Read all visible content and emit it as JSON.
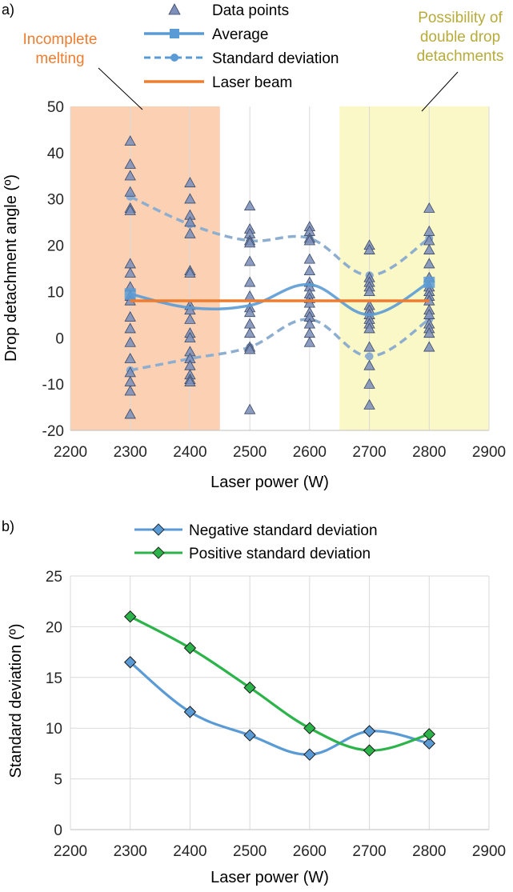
{
  "colors": {
    "incomplete_region": "#fbd0b3",
    "double_region": "#fbf8c7",
    "data_point_fill": "#7d8fba",
    "data_point_stroke": "#3b4864",
    "average": "#5b9bd5",
    "std_dev": "#8eaed0",
    "laser_beam": "#ed7d31",
    "negative_sd": "#5b9bd5",
    "positive_sd": "#2cb34a",
    "incomplete_text": "#ed7d31",
    "double_text": "#b7ab3c",
    "grid": "#d9d9d9"
  },
  "chart_data": [
    {
      "type": "scatter",
      "panel_label": "a)",
      "xlabel": "Laser power (W)",
      "ylabel": "Drop detachment angle (º)",
      "xlim": [
        2200,
        2900
      ],
      "ylim": [
        -20,
        50
      ],
      "x_ticks": [
        "2200",
        "2300",
        "2400",
        "2500",
        "2600",
        "2700",
        "2800",
        "2900"
      ],
      "y_ticks": [
        "-20",
        "-10",
        "0",
        "10",
        "20",
        "30",
        "40",
        "50"
      ],
      "grid": "vertical",
      "legend_position": "top",
      "regions": [
        {
          "x_from": 2200,
          "x_to": 2450,
          "label_lines": [
            "Incomplete",
            "melting"
          ],
          "pointer": [
            2290,
            10
          ]
        },
        {
          "x_from": 2650,
          "x_to": 2900,
          "label_lines": [
            "Possibility of",
            "double drop",
            "detachments"
          ],
          "pointer": [
            2780,
            13
          ]
        }
      ],
      "series": [
        {
          "name": "Data points",
          "kind": "markers",
          "points": {
            "2300": [
              42.5,
              37.5,
              35,
              31.5,
              28,
              27.5,
              16,
              14,
              11,
              9,
              8,
              4.5,
              2,
              -1,
              -4.5,
              -7.5,
              -9.5,
              -11.5,
              -16.5
            ],
            "2400": [
              33.5,
              30,
              26.5,
              25,
              22.5,
              14.5,
              14,
              7,
              6,
              4,
              1,
              0,
              -3,
              -4.5,
              -6,
              -8,
              -9,
              -9.5
            ],
            "2500": [
              28.5,
              23.5,
              22.5,
              21,
              20.5,
              16.5,
              12,
              9,
              6.5,
              5.5,
              3,
              1,
              -2,
              -2.5,
              -15.5
            ],
            "2600": [
              24,
              23,
              21.5,
              21,
              17,
              14.5,
              12,
              11,
              9.5,
              8.5,
              7.5,
              5.5,
              4.5,
              3,
              1,
              -1
            ],
            "2700": [
              20,
              19,
              13,
              12,
              11,
              10,
              7,
              6,
              5,
              4,
              3,
              2,
              -2,
              -6,
              -10,
              -14.5
            ],
            "2800": [
              28,
              23,
              21,
              19,
              16,
              13,
              11,
              10,
              9,
              8,
              6,
              5,
              3,
              2,
              1,
              -2
            ]
          }
        },
        {
          "name": "Average",
          "kind": "line",
          "x": [
            2300,
            2400,
            2500,
            2600,
            2700,
            2800
          ],
          "values": [
            9.5,
            6.5,
            7,
            11.5,
            5,
            12
          ]
        },
        {
          "name": "Standard deviation",
          "kind": "dashed",
          "lines": [
            {
              "x": [
                2300,
                2400,
                2500,
                2600,
                2700,
                2800
              ],
              "values": [
                30.5,
                24.5,
                21,
                21.5,
                13.5,
                21.5
              ]
            },
            {
              "x": [
                2300,
                2400,
                2500,
                2600,
                2700,
                2800
              ],
              "values": [
                -7,
                -4.5,
                -2,
                4,
                -4,
                4
              ]
            }
          ]
        },
        {
          "name": "Laser beam",
          "kind": "line",
          "x": [
            2300,
            2800
          ],
          "values": [
            8,
            8
          ]
        }
      ]
    },
    {
      "type": "line",
      "panel_label": "b)",
      "xlabel": "Laser power (W)",
      "ylabel": "Standard deviation (º)",
      "xlim": [
        2200,
        2900
      ],
      "ylim": [
        0,
        25
      ],
      "x_ticks": [
        "2200",
        "2300",
        "2400",
        "2500",
        "2600",
        "2700",
        "2800",
        "2900"
      ],
      "y_ticks": [
        "0",
        "5",
        "10",
        "15",
        "20",
        "25"
      ],
      "grid": "both",
      "legend_position": "top",
      "x": [
        2300,
        2400,
        2500,
        2600,
        2700,
        2800
      ],
      "series": [
        {
          "name": "Negative standard deviation",
          "values": [
            16.5,
            11.6,
            9.3,
            7.4,
            9.7,
            8.5
          ]
        },
        {
          "name": "Positive standard deviation",
          "values": [
            21,
            17.9,
            14,
            10,
            7.8,
            9.4
          ]
        }
      ]
    }
  ]
}
